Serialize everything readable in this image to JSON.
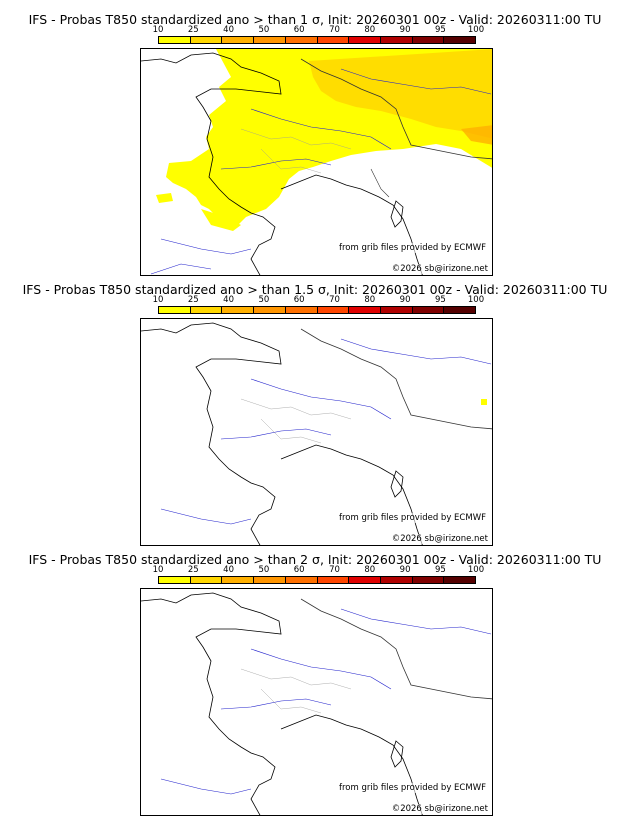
{
  "panels": [
    {
      "title": "IFS - Probas T850  standardized ano > than 1 σ, Init: 20260301 00z - Valid: 20260311:00 TU",
      "credit_source": "from grib files provided by ECMWF",
      "credit_copyright": "©2026 sb@irizone.net"
    },
    {
      "title": "IFS - Probas T850  standardized ano > than 1.5 σ, Init: 20260301 00z - Valid: 20260311:00 TU",
      "credit_source": "from grib files provided by ECMWF",
      "credit_copyright": "©2026 sb@irizone.net"
    },
    {
      "title": "IFS - Probas T850  standardized ano > than 2 σ, Init: 20260301 00z - Valid: 20260311:00 TU",
      "credit_source": "from grib files provided by ECMWF",
      "credit_copyright": "©2026 sb@irizone.net"
    }
  ],
  "scale": {
    "labels": [
      "10",
      "25",
      "40",
      "50",
      "60",
      "70",
      "80",
      "90",
      "95",
      "100"
    ],
    "colors": [
      "#ffff00",
      "#ffd700",
      "#ffb000",
      "#ff9500",
      "#ff7000",
      "#ff4500",
      "#e00000",
      "#b00000",
      "#800000",
      "#550000"
    ]
  }
}
